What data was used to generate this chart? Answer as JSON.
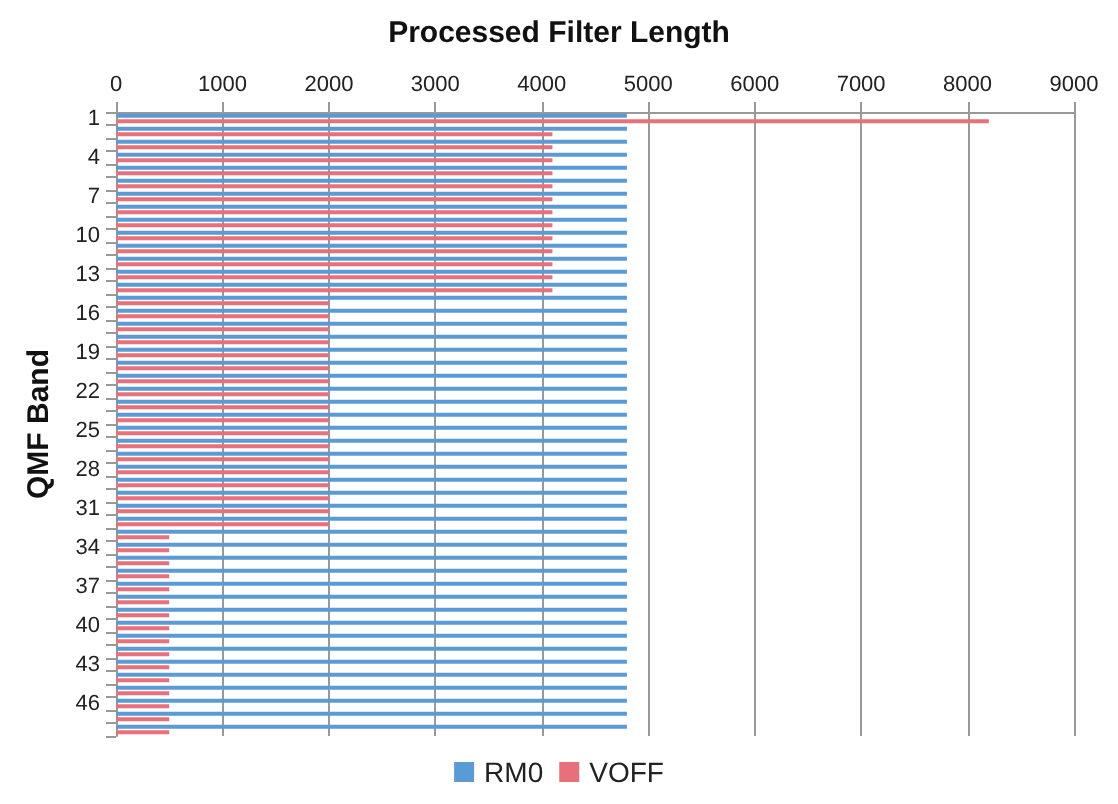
{
  "chart_data": {
    "type": "bar",
    "orientation": "horizontal",
    "title": "Processed Filter Length",
    "ylabel": "QMF Band",
    "categories": [
      "1",
      null,
      null,
      "4",
      null,
      null,
      "7",
      null,
      null,
      "10",
      null,
      null,
      "13",
      null,
      null,
      "16",
      null,
      null,
      "19",
      null,
      null,
      "22",
      null,
      null,
      "25",
      null,
      null,
      "28",
      null,
      null,
      "31",
      null,
      null,
      "34",
      null,
      null,
      "37",
      null,
      null,
      "40",
      null,
      null,
      "43",
      null,
      null,
      "46",
      null,
      null
    ],
    "series": [
      {
        "name": "RM0",
        "color": "#5b9bd5",
        "values": [
          4800,
          4800,
          4800,
          4800,
          4800,
          4800,
          4800,
          4800,
          4800,
          4800,
          4800,
          4800,
          4800,
          4800,
          4800,
          4800,
          4800,
          4800,
          4800,
          4800,
          4800,
          4800,
          4800,
          4800,
          4800,
          4800,
          4800,
          4800,
          4800,
          4800,
          4800,
          4800,
          4800,
          4800,
          4800,
          4800,
          4800,
          4800,
          4800,
          4800,
          4800,
          4800,
          4800,
          4800,
          4800,
          4800,
          4800,
          4800
        ]
      },
      {
        "name": "VOFF",
        "color": "#e8707a",
        "values": [
          8200,
          4100,
          4100,
          4100,
          4100,
          4100,
          4100,
          4100,
          4100,
          4100,
          4100,
          4100,
          4100,
          4100,
          2000,
          2000,
          2000,
          2000,
          2000,
          2000,
          2000,
          2000,
          2000,
          2000,
          2000,
          2000,
          2000,
          2000,
          2000,
          2000,
          2000,
          2000,
          500,
          500,
          500,
          500,
          500,
          500,
          500,
          500,
          500,
          500,
          500,
          500,
          500,
          500,
          500,
          500
        ]
      }
    ],
    "xlim": [
      0,
      9000
    ],
    "xticks": [
      0,
      1000,
      2000,
      3000,
      4000,
      5000,
      6000,
      7000,
      8000,
      9000
    ],
    "grid": "x",
    "legend": "bottom"
  }
}
